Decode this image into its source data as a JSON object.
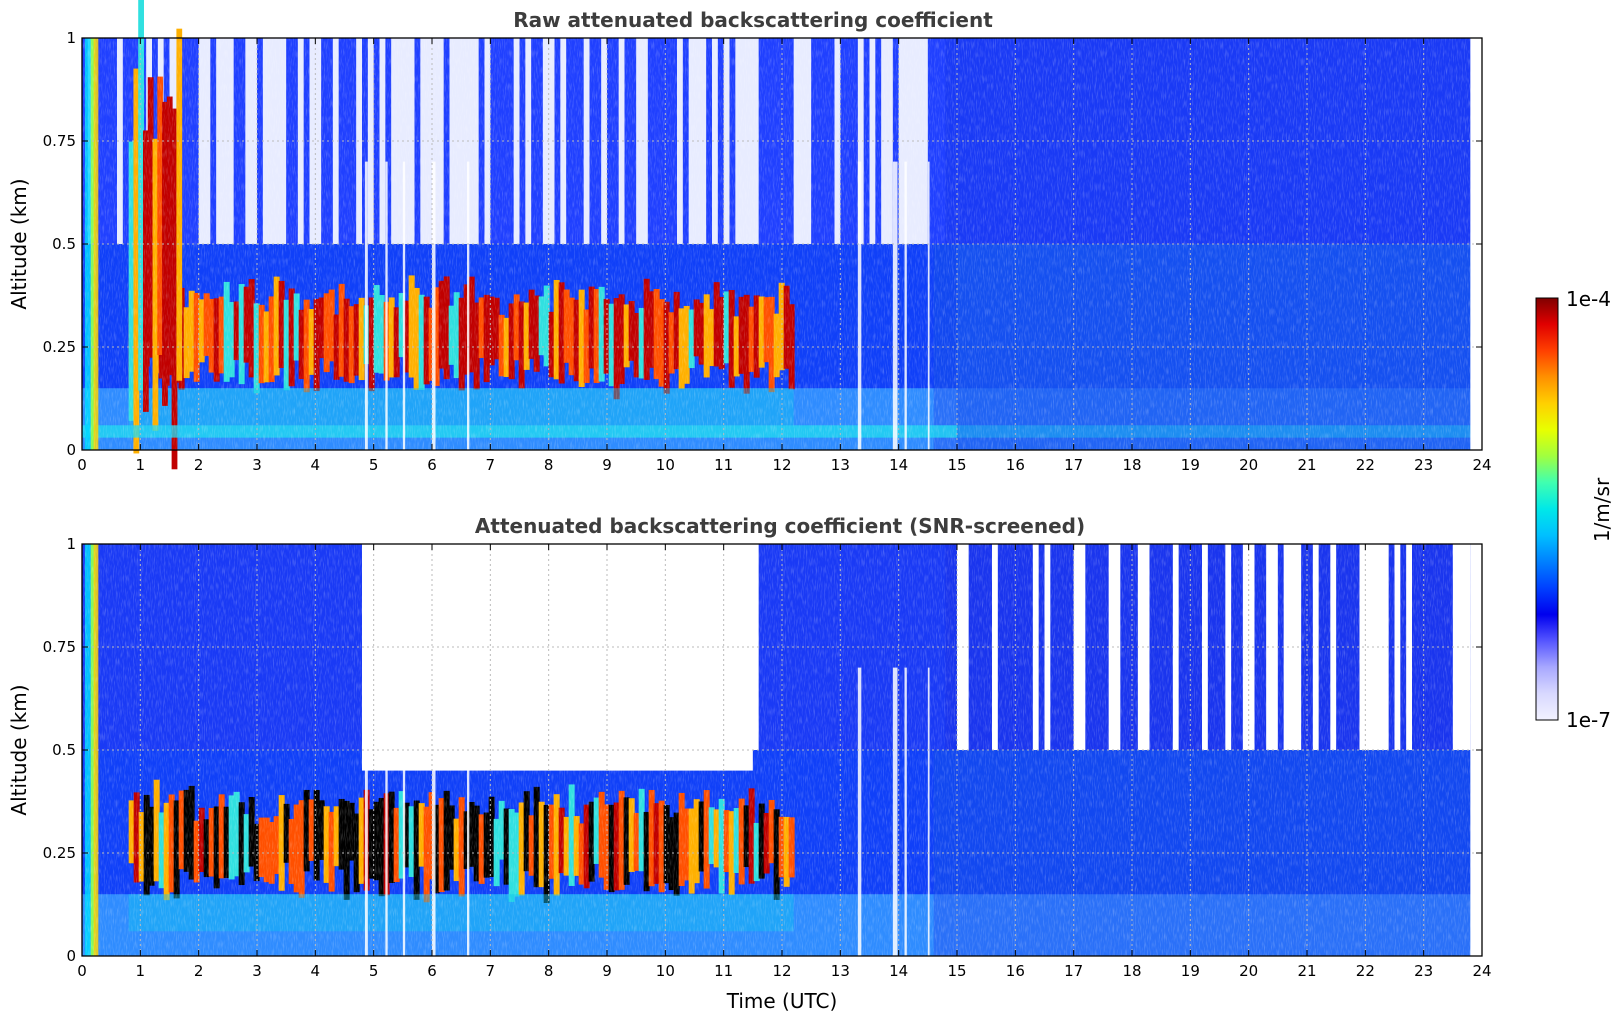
{
  "chart_data": [
    {
      "type": "heatmap",
      "title": "Raw attenuated backscattering coefficient",
      "xlabel": "",
      "ylabel": "Altitude (km)",
      "xlim": [
        0,
        24
      ],
      "ylim": [
        0,
        1
      ],
      "x_ticks": [
        "0",
        "1",
        "2",
        "3",
        "4",
        "5",
        "6",
        "7",
        "8",
        "9",
        "10",
        "11",
        "12",
        "13",
        "14",
        "15",
        "16",
        "17",
        "18",
        "19",
        "20",
        "21",
        "22",
        "23",
        "24"
      ],
      "y_ticks": [
        "0",
        "0.25",
        "0.5",
        "0.75",
        "1"
      ],
      "grid": true,
      "colorscale": "jet (log)",
      "features": [
        {
          "name": "strong aerosol/cloud layer",
          "time_range": [
            0.8,
            12.2
          ],
          "altitude_range": [
            0.15,
            0.4
          ],
          "level": "high"
        },
        {
          "name": "intense plume",
          "time_range": [
            0.8,
            1.7
          ],
          "altitude_range": [
            0.0,
            1.0
          ],
          "level": "high"
        },
        {
          "name": "near-surface layer",
          "time_range": [
            0,
            24
          ],
          "altitude_range": [
            0.03,
            0.06
          ],
          "level": "medium"
        },
        {
          "name": "background",
          "time_range": [
            15,
            24
          ],
          "altitude_range": [
            0.0,
            0.5
          ],
          "level": "low"
        }
      ]
    },
    {
      "type": "heatmap",
      "title": "Attenuated backscattering coefficient (SNR-screened)",
      "xlabel": "Time (UTC)",
      "ylabel": "Altitude (km)",
      "xlim": [
        0,
        24
      ],
      "ylim": [
        0,
        1
      ],
      "x_ticks": [
        "0",
        "1",
        "2",
        "3",
        "4",
        "5",
        "6",
        "7",
        "8",
        "9",
        "10",
        "11",
        "12",
        "13",
        "14",
        "15",
        "16",
        "17",
        "18",
        "19",
        "20",
        "21",
        "22",
        "23",
        "24"
      ],
      "y_ticks": [
        "0",
        "0.25",
        "0.5",
        "0.75",
        "1"
      ],
      "grid": true,
      "colorscale": "jet (log)",
      "features": [
        {
          "name": "strong aerosol/cloud layer (saturated)",
          "time_range": [
            0.8,
            12.2
          ],
          "altitude_range": [
            0.15,
            0.4
          ],
          "level": "high"
        },
        {
          "name": "screened out (no signal)",
          "time_range": [
            4.8,
            11.5
          ],
          "altitude_range": [
            0.45,
            1.0
          ],
          "level": "none"
        }
      ]
    }
  ],
  "colorbar": {
    "max_label": "1e-4",
    "min_label": "1e-7",
    "unit_label": "1/m/sr",
    "colors": [
      "#f2f2ff",
      "#d8d8ff",
      "#a8a8ff",
      "#5555ff",
      "#0000ee",
      "#0040ff",
      "#0080ff",
      "#00c0ff",
      "#00e8e8",
      "#40ffb0",
      "#a0ff40",
      "#e8ff00",
      "#ffd000",
      "#ff9000",
      "#ff4000",
      "#e00000",
      "#800000"
    ]
  },
  "xlabel": "Time (UTC)"
}
